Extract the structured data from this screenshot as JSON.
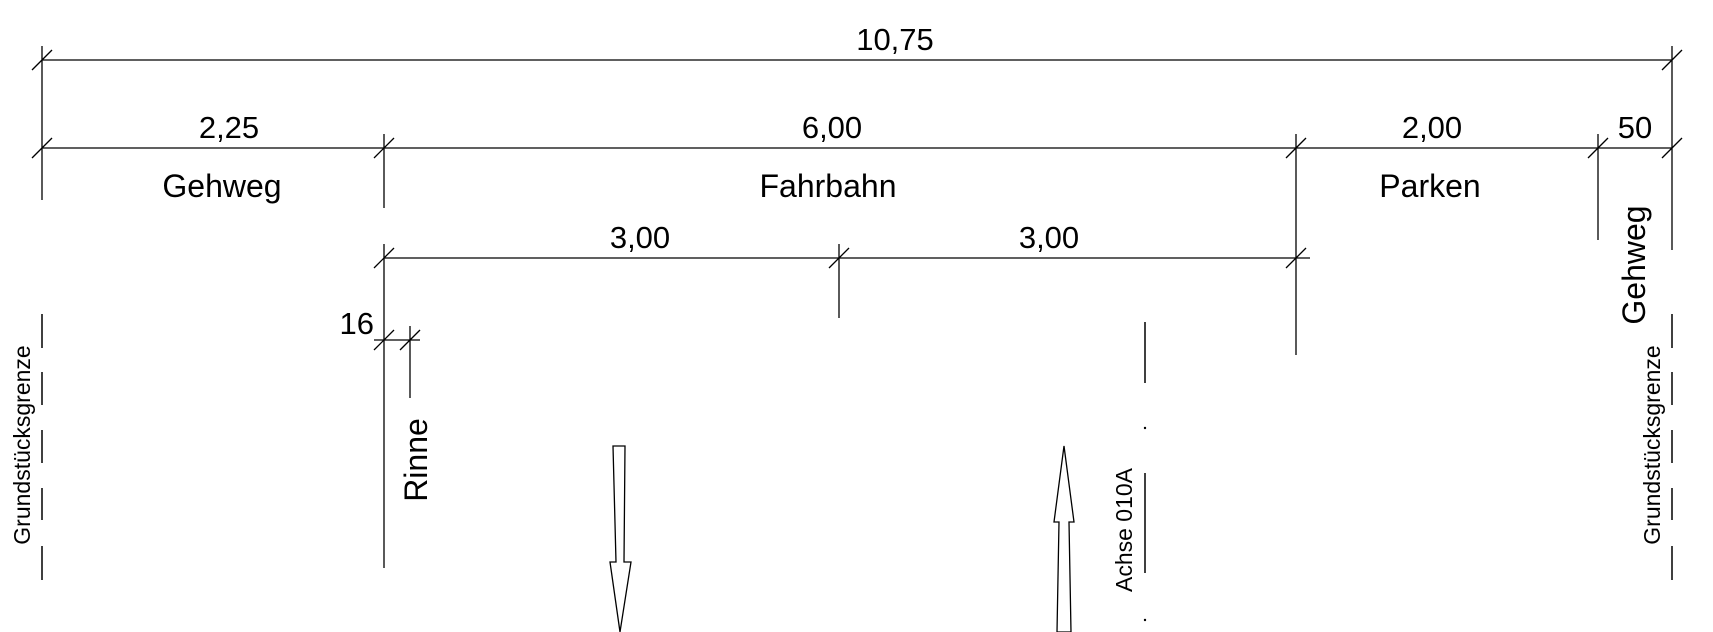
{
  "dimensions": {
    "total": "10,75",
    "sidewalk_left": "2,25",
    "roadway": "6,00",
    "parking": "2,00",
    "sidewalk_right": "50",
    "lane_left": "3,00",
    "lane_right": "3,00",
    "gutter": "16"
  },
  "labels": {
    "sidewalk_left": "Gehweg",
    "roadway": "Fahrbahn",
    "parking": "Parken",
    "sidewalk_right": "Gehweg",
    "gutter": "Rinne",
    "axis": "Achse 010A",
    "boundary_left": "Grundstücksgrenze",
    "boundary_right": "Grundstücksgrenze"
  },
  "arrows": {
    "left_lane": "down",
    "right_lane": "up"
  }
}
